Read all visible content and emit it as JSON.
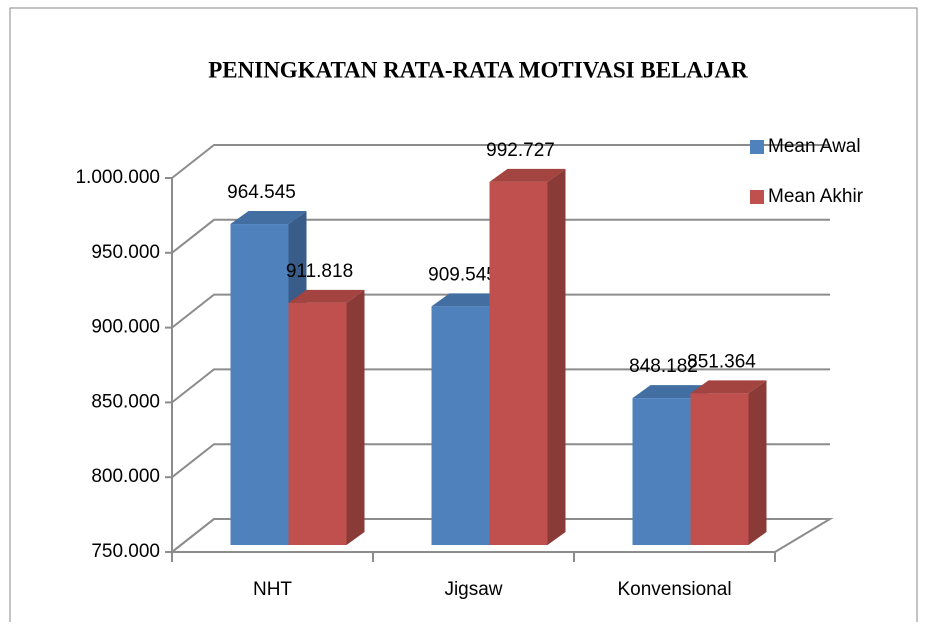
{
  "chart_data": {
    "type": "bar3d",
    "title": "PENINGKATAN RATA-RATA MOTIVASI BELAJAR",
    "categories": [
      "NHT",
      "Jigsaw",
      "Konvensional"
    ],
    "series": [
      {
        "name": "Mean Awal",
        "color": "#4f81bd",
        "values": [
          964545,
          909545,
          848182
        ],
        "value_labels": [
          "964.545",
          "909.545",
          "848.182"
        ]
      },
      {
        "name": "Mean Akhir",
        "color": "#c0504d",
        "values": [
          911818,
          992727,
          851364
        ],
        "value_labels": [
          "911.818",
          "992.727",
          "851.364"
        ]
      }
    ],
    "ylim": [
      750000,
      1000000
    ],
    "yticks": [
      {
        "value": 750000,
        "label": "750.000"
      },
      {
        "value": 800000,
        "label": "800.000"
      },
      {
        "value": 850000,
        "label": "850.000"
      },
      {
        "value": 900000,
        "label": "900.000"
      },
      {
        "value": 950000,
        "label": "950.000"
      },
      {
        "value": 1000000,
        "label": "1.000.000"
      }
    ],
    "grid": true,
    "legend": "right"
  }
}
